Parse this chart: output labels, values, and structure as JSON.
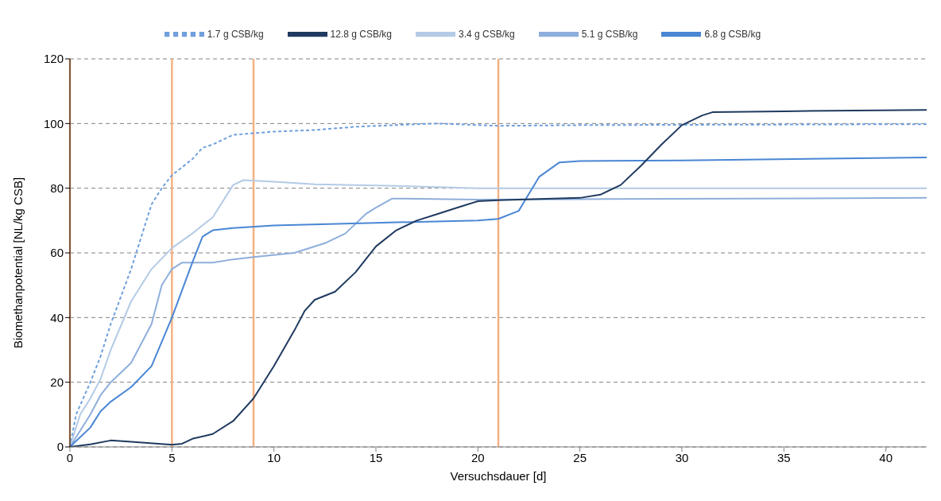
{
  "chart_data": {
    "type": "line",
    "xlabel": "Versuchsdauer [d]",
    "ylabel": "Biomethanpotential [NL/kg CSB]",
    "xlim": [
      0,
      42
    ],
    "xticks": [
      0,
      5,
      10,
      15,
      20,
      25,
      30,
      35,
      40
    ],
    "ylim": [
      0,
      120
    ],
    "yticks": [
      0,
      20,
      40,
      60,
      80,
      100,
      120
    ],
    "grid": "y",
    "legend": "top",
    "marker": "none",
    "ref_lines": [
      {
        "axis": "x",
        "value": 0,
        "color": "#f4b183"
      },
      {
        "axis": "x",
        "value": 5,
        "color": "#f4b183"
      },
      {
        "axis": "x",
        "value": 9,
        "color": "#f4b183"
      },
      {
        "axis": "x",
        "value": 21,
        "color": "#f4b183"
      }
    ],
    "series": [
      {
        "name": "1.7 g CSB/kg",
        "color": "#6f9fdc",
        "line_style": "dashed",
        "x": [
          0,
          0.3,
          1,
          1.5,
          2,
          3,
          4,
          4.5,
          5,
          6,
          6.5,
          7,
          8,
          9,
          10,
          12,
          14,
          17,
          18,
          21,
          25,
          30,
          42
        ],
        "values": [
          0,
          10,
          20,
          28,
          38,
          55,
          75,
          80,
          84,
          89,
          92.5,
          93.5,
          96.5,
          97,
          97.5,
          98,
          99,
          99.8,
          100,
          99.3,
          99.5,
          99.6,
          99.8
        ]
      },
      {
        "name": "3.4 g CSB/kg",
        "color": "#b4cbe6",
        "x": [
          0,
          0.5,
          1,
          1.5,
          2,
          3,
          4,
          5,
          6,
          7,
          8,
          8.5,
          10,
          12,
          16,
          20,
          42
        ],
        "values": [
          0,
          10,
          15,
          21,
          30,
          45,
          55,
          61.5,
          66,
          71,
          81,
          82.5,
          82,
          81.2,
          80.7,
          80,
          80
        ]
      },
      {
        "name": "5.1 g CSB/kg",
        "color": "#8eaedb",
        "x": [
          0,
          1,
          1.5,
          2,
          3,
          4,
          4.5,
          5,
          5.5,
          7,
          8,
          9,
          11,
          12.5,
          13.5,
          14.5,
          15,
          15.8,
          20,
          25,
          42
        ],
        "values": [
          0,
          10,
          16,
          20,
          26,
          38,
          50,
          55,
          57,
          57,
          58,
          58.7,
          60,
          63,
          66,
          72,
          74,
          76.8,
          76.5,
          76.6,
          77
        ]
      },
      {
        "name": "6.8 g CSB/kg",
        "color": "#4a86d4",
        "x": [
          0,
          1,
          1.5,
          2,
          3,
          4,
          5,
          6,
          6.5,
          7,
          8,
          10,
          15,
          20,
          21,
          22,
          23,
          24,
          25,
          30,
          42
        ],
        "values": [
          0,
          6,
          11,
          14,
          18.5,
          25,
          40,
          57,
          65,
          67,
          67.7,
          68.5,
          69.3,
          70,
          70.5,
          73,
          83.5,
          88,
          88.4,
          88.6,
          89.5
        ]
      },
      {
        "name": "12.8 g CSB/kg",
        "color": "#1f3a5f",
        "x": [
          0,
          1,
          2,
          3,
          5,
          5.5,
          6,
          7,
          8,
          9,
          10,
          11,
          11.5,
          12,
          13,
          14,
          15,
          16,
          17,
          18,
          19,
          20,
          21,
          25,
          26,
          27,
          28,
          29,
          30,
          31,
          31.5,
          35,
          42
        ],
        "values": [
          0,
          0.8,
          2,
          1.6,
          0.7,
          1,
          2.5,
          4,
          8,
          15,
          25,
          36,
          42,
          45.5,
          48,
          54,
          62,
          67,
          70,
          72,
          74,
          76,
          76.3,
          77,
          78,
          81,
          87,
          93.5,
          99.5,
          102.5,
          103.5,
          103.8,
          104.2
        ]
      }
    ]
  }
}
